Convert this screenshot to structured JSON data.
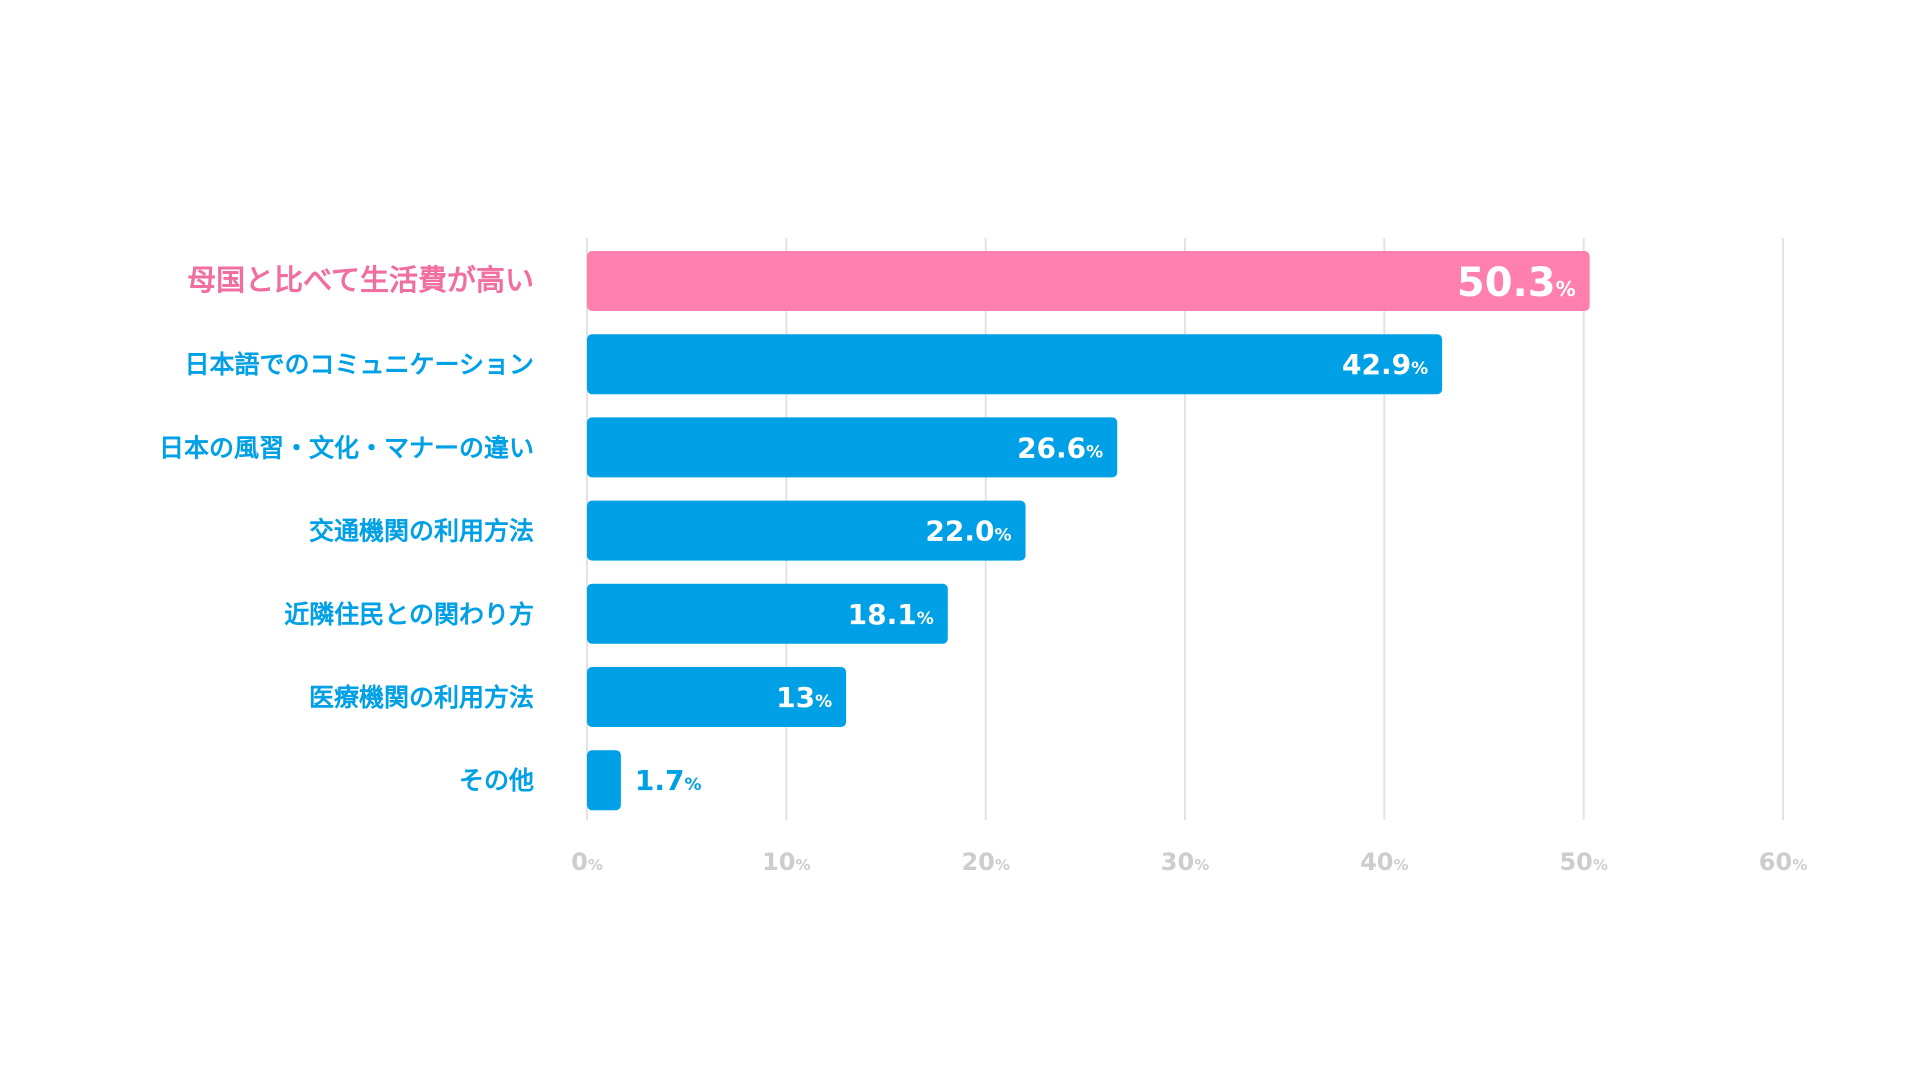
{
  "colors": {
    "highlight": "#ff7fae",
    "bar": "#00a0e6",
    "label": "#00a0e6",
    "highlight_label": "#f06fa0",
    "value_text": "#ffffff",
    "value_text_outside": "#00a0e6",
    "grid": "#e3e3e3",
    "tick": "#cdcdcd"
  },
  "chart_data": {
    "type": "bar",
    "orientation": "horizontal",
    "categories": [
      "母国と比べて生活費が高い",
      "日本語でのコミュニケーション",
      "日本の風習・文化・マナーの違い",
      "交通機関の利用方法",
      "近隣住民との関わり方",
      "医療機関の利用方法",
      "その他"
    ],
    "values": [
      50.3,
      42.9,
      26.6,
      22.0,
      18.1,
      13,
      1.7
    ],
    "value_labels": [
      "50.3",
      "42.9",
      "26.6",
      "22.0",
      "18.1",
      "13",
      "1.7"
    ],
    "value_unit": "%",
    "highlight_index": 0,
    "xlim": [
      0,
      60
    ],
    "xticks": [
      0,
      10,
      20,
      30,
      40,
      50,
      60
    ],
    "xtick_labels": [
      "0",
      "10",
      "20",
      "30",
      "40",
      "50",
      "60"
    ],
    "xtick_unit": "%",
    "grid": true
  }
}
